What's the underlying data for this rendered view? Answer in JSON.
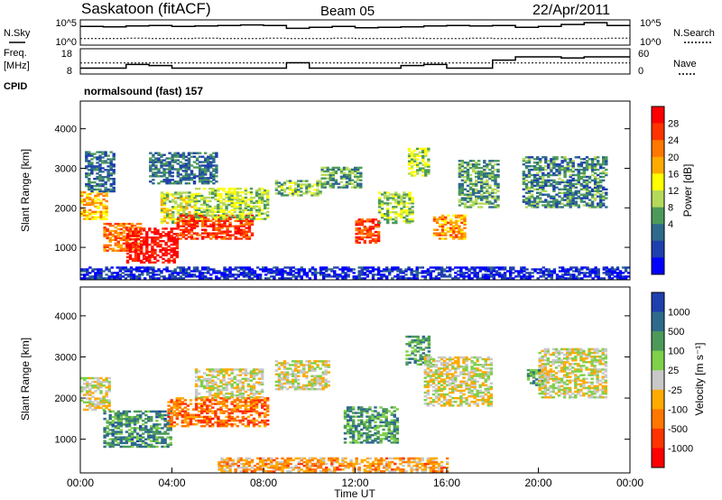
{
  "header": {
    "station": "Saskatoon (fitACF)",
    "beam": "Beam 05",
    "date": "22/Apr/2011"
  },
  "side_labels": {
    "nsky": "N.Sky",
    "freq1": "Freq.",
    "freq2": "[MHz]",
    "cpid": "CPID",
    "nsearch": "N.Search",
    "nave": "Nave"
  },
  "cpid_text": "normalsound (fast) 157",
  "chart_data": [
    {
      "type": "line",
      "name": "noise",
      "series_labels": [
        "N.Sky",
        "N.Search"
      ],
      "y_ticks": [
        "10^5",
        "10^0"
      ],
      "right_ticks": [
        "10^5",
        "10^0"
      ],
      "x": [
        0,
        1,
        2,
        3,
        4,
        5,
        6,
        7,
        8,
        9,
        10,
        11,
        12,
        13,
        14,
        15,
        16,
        17,
        18,
        19,
        20,
        21,
        22,
        23
      ],
      "nsky": [
        3.8,
        3.7,
        3.9,
        4.0,
        3.8,
        3.9,
        4.0,
        4.1,
        4.0,
        3.4,
        3.6,
        3.8,
        3.5,
        3.6,
        3.7,
        3.9,
        4.0,
        3.9,
        4.0,
        3.6,
        3.8,
        4.2,
        4.6,
        4.0
      ],
      "nsearch": [
        1.2,
        1.2,
        1.3,
        1.2,
        1.2,
        1.3,
        1.2,
        1.2,
        1.3,
        1.2,
        1.2,
        1.3,
        1.2,
        1.2,
        1.3,
        1.2,
        1.2,
        1.3,
        1.2,
        1.2,
        1.3,
        1.2,
        1.2,
        1.3
      ]
    },
    {
      "type": "line",
      "name": "frequency",
      "y_ticks": [
        "18",
        "8"
      ],
      "right_ticks": [
        "60",
        "0"
      ],
      "x": [
        0,
        1,
        2,
        3,
        4,
        5,
        6,
        7,
        8,
        9,
        10,
        11,
        12,
        13,
        14,
        15,
        16,
        17,
        18,
        19,
        20,
        21,
        22,
        23
      ],
      "freq_mhz": [
        10.3,
        10.3,
        12.0,
        11.5,
        10.3,
        10.3,
        10.3,
        10.3,
        10.3,
        12.8,
        10.3,
        10.3,
        10.3,
        10.3,
        11.5,
        12.0,
        10.3,
        10.3,
        14.0,
        15.5,
        15.5,
        15.0,
        15.5,
        15.5
      ],
      "nave": [
        28,
        28,
        28,
        28,
        28,
        28,
        28,
        28,
        28,
        28,
        28,
        28,
        28,
        28,
        28,
        28,
        28,
        28,
        28,
        28,
        28,
        28,
        28,
        28
      ]
    },
    {
      "type": "heatmap",
      "name": "power",
      "ylabel": "Slant Range [km]",
      "yticks": [
        1000,
        2000,
        3000,
        4000
      ],
      "ylim": [
        180,
        4700
      ],
      "xlim": [
        0,
        24
      ],
      "colorbar_label": "Power [dB]",
      "colorbar_ticks": [
        "28",
        "24",
        "20",
        "16",
        "12",
        "8",
        "4"
      ],
      "colorbar_colors": [
        "#ff0000",
        "#ff3300",
        "#ff7700",
        "#ffaa00",
        "#ffff00",
        "#b5d95b",
        "#4c9a5a",
        "#2e6a8c",
        "#1e3fae",
        "#0000ff"
      ],
      "regions": [
        {
          "t0": 0.0,
          "t1": 1.2,
          "r0": 1700,
          "r1": 2400,
          "level": 0.65
        },
        {
          "t0": 0.2,
          "t1": 1.5,
          "r0": 2400,
          "r1": 3400,
          "level": 0.25
        },
        {
          "t0": 1.0,
          "t1": 2.6,
          "r0": 900,
          "r1": 1600,
          "level": 0.75
        },
        {
          "t0": 2.0,
          "t1": 4.2,
          "r0": 600,
          "r1": 1500,
          "level": 0.95
        },
        {
          "t0": 3.5,
          "t1": 5.0,
          "r0": 1600,
          "r1": 2400,
          "level": 0.5
        },
        {
          "t0": 3.0,
          "t1": 6.0,
          "r0": 2600,
          "r1": 3400,
          "level": 0.25
        },
        {
          "t0": 4.2,
          "t1": 7.5,
          "r0": 1200,
          "r1": 1800,
          "level": 0.85
        },
        {
          "t0": 5.0,
          "t1": 8.2,
          "r0": 1700,
          "r1": 2500,
          "level": 0.45
        },
        {
          "t0": 8.5,
          "t1": 10.5,
          "r0": 2300,
          "r1": 2700,
          "level": 0.4
        },
        {
          "t0": 10.5,
          "t1": 12.2,
          "r0": 2500,
          "r1": 3000,
          "level": 0.35
        },
        {
          "t0": 12.0,
          "t1": 13.0,
          "r0": 1100,
          "r1": 1700,
          "level": 0.85
        },
        {
          "t0": 13.0,
          "t1": 14.5,
          "r0": 1600,
          "r1": 2400,
          "level": 0.45
        },
        {
          "t0": 14.3,
          "t1": 15.2,
          "r0": 2800,
          "r1": 3500,
          "level": 0.45
        },
        {
          "t0": 15.4,
          "t1": 16.8,
          "r0": 1200,
          "r1": 1800,
          "level": 0.7
        },
        {
          "t0": 16.5,
          "t1": 18.3,
          "r0": 2000,
          "r1": 3200,
          "level": 0.35
        },
        {
          "t0": 19.3,
          "t1": 23.0,
          "r0": 2000,
          "r1": 3300,
          "level": 0.3
        },
        {
          "t0": 0.0,
          "t1": 24.0,
          "r0": 200,
          "r1": 500,
          "level": 0.1
        }
      ]
    },
    {
      "type": "heatmap",
      "name": "velocity",
      "ylabel": "Slant Range [km]",
      "xlabel": "Time UT",
      "xticks": [
        "00:00",
        "04:00",
        "08:00",
        "12:00",
        "16:00",
        "20:00",
        "00:00"
      ],
      "yticks": [
        1000,
        2000,
        3000,
        4000
      ],
      "ylim": [
        180,
        4700
      ],
      "xlim": [
        0,
        24
      ],
      "colorbar_label": "Velocity [m s⁻¹]",
      "colorbar_ticks": [
        "1000",
        "500",
        "100",
        "25",
        "-25",
        "-100",
        "-500",
        "-1000"
      ],
      "colorbar_colors": [
        "#1e3fae",
        "#2e6a8c",
        "#4c9a5a",
        "#7fd04a",
        "#c8c8c8",
        "#ffaa00",
        "#ff7700",
        "#ff3300",
        "#ff0000"
      ],
      "regions": [
        {
          "t0": 0.0,
          "t1": 1.3,
          "r0": 1700,
          "r1": 2500,
          "level": 0.5
        },
        {
          "t0": 1.0,
          "t1": 4.0,
          "r0": 800,
          "r1": 1700,
          "level": 0.75
        },
        {
          "t0": 3.8,
          "t1": 8.2,
          "r0": 1300,
          "r1": 2000,
          "level": 0.25
        },
        {
          "t0": 5.0,
          "t1": 8.0,
          "r0": 2000,
          "r1": 2700,
          "level": 0.5
        },
        {
          "t0": 8.5,
          "t1": 10.8,
          "r0": 2200,
          "r1": 2900,
          "level": 0.5
        },
        {
          "t0": 11.5,
          "t1": 13.8,
          "r0": 900,
          "r1": 1800,
          "level": 0.72
        },
        {
          "t0": 14.2,
          "t1": 15.2,
          "r0": 2800,
          "r1": 3500,
          "level": 0.72
        },
        {
          "t0": 15.0,
          "t1": 18.0,
          "r0": 1800,
          "r1": 3000,
          "level": 0.5
        },
        {
          "t0": 19.5,
          "t1": 20.3,
          "r0": 2300,
          "r1": 2700,
          "level": 0.7
        },
        {
          "t0": 20.0,
          "t1": 23.0,
          "r0": 2000,
          "r1": 3200,
          "level": 0.5
        },
        {
          "t0": 6.0,
          "t1": 16.0,
          "r0": 200,
          "r1": 550,
          "level": 0.35
        }
      ]
    }
  ]
}
